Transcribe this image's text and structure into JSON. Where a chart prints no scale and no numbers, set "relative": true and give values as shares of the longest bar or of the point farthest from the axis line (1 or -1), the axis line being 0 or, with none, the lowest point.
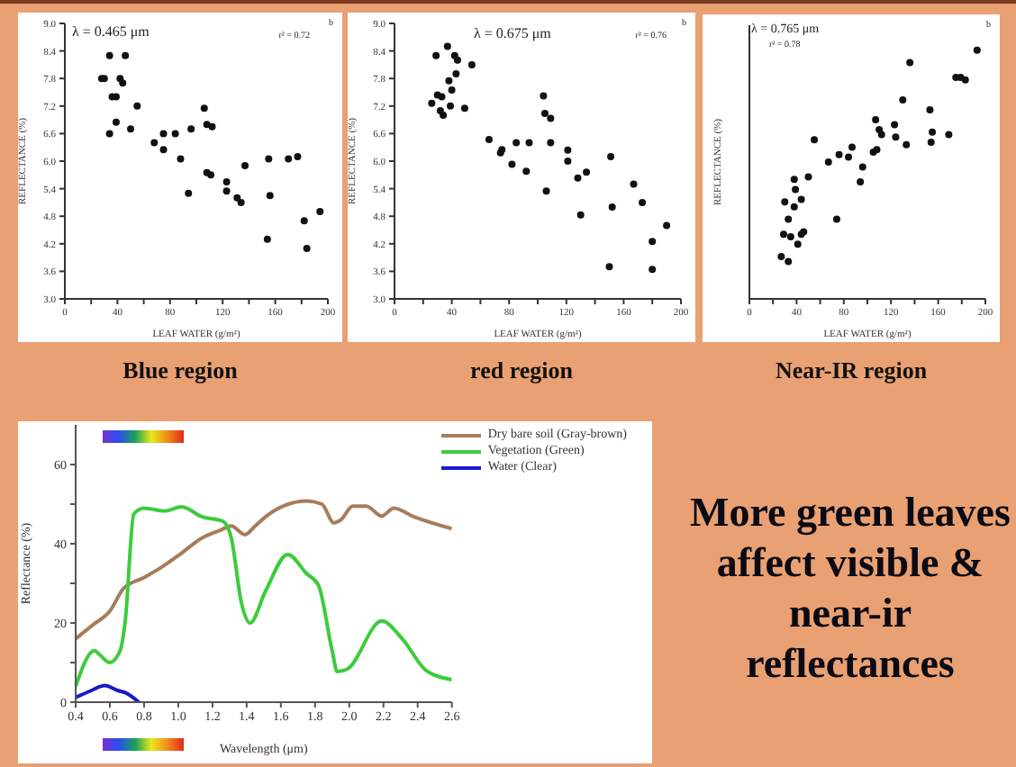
{
  "chart_data": [
    {
      "type": "scatter",
      "title": "Blue region",
      "xlabel": "LEAF WATER (g/m²)",
      "ylabel": "REFLECTANCE (%)",
      "annotations": [
        "λ = 0.465 μm",
        "r² = 0.72",
        "b"
      ],
      "color": "#111111",
      "marker": "circle",
      "x": [
        34,
        46,
        28,
        30,
        42,
        44,
        36,
        39,
        55,
        39,
        34,
        50,
        68,
        75,
        75,
        84,
        88,
        96,
        94,
        106,
        108,
        112,
        108,
        111,
        123,
        123,
        131,
        134,
        137,
        154,
        155,
        156,
        170,
        177,
        182,
        184,
        194
      ],
      "values": [
        8.3,
        8.3,
        7.8,
        7.8,
        7.8,
        7.7,
        7.4,
        7.4,
        7.2,
        6.85,
        6.6,
        6.7,
        6.4,
        6.6,
        6.25,
        6.6,
        6.05,
        6.7,
        5.3,
        7.15,
        6.8,
        6.75,
        5.75,
        5.7,
        5.55,
        5.35,
        5.2,
        5.1,
        5.9,
        4.3,
        6.05,
        5.25,
        6.05,
        6.1,
        4.7,
        4.1,
        4.9
      ],
      "xlim": [
        0,
        200
      ],
      "xticks": [
        0,
        {
          "value": 20,
          "label": null
        },
        40,
        {
          "value": 60,
          "label": null
        },
        80,
        {
          "value": 100,
          "label": null
        },
        120,
        {
          "value": 140,
          "label": null
        },
        160,
        {
          "value": 180,
          "label": null
        },
        200
      ],
      "ylim": [
        3,
        9
      ],
      "yticks": [
        {
          "value": 3,
          "label": "3.0"
        },
        3.6,
        4.2,
        4.8,
        5.4,
        {
          "value": 6,
          "label": "6.0"
        },
        6.6,
        7.2,
        7.8,
        8.4,
        {
          "value": 9,
          "label": "9.0"
        }
      ]
    },
    {
      "type": "scatter",
      "title": "red region",
      "xlabel": "LEAF WATER (g/m²)",
      "ylabel": "REFLECTANCE (%)",
      "annotations": [
        "λ = 0.675 μm",
        "r² = 0.76",
        "b"
      ],
      "color": "#111111",
      "marker": "circle",
      "x": [
        29,
        37,
        42,
        44,
        43,
        38,
        40,
        54,
        26,
        30,
        33,
        32,
        34,
        39,
        49,
        66,
        74,
        75,
        82,
        85,
        92,
        94,
        104,
        105,
        109,
        109,
        106,
        121,
        121,
        128,
        134,
        130,
        150,
        151,
        152,
        167,
        173,
        180,
        180,
        190
      ],
      "values": [
        8.3,
        8.5,
        8.3,
        8.2,
        7.9,
        7.75,
        7.55,
        8.1,
        7.26,
        7.44,
        7.4,
        7.1,
        7.0,
        7.2,
        7.15,
        6.47,
        6.18,
        6.25,
        5.93,
        6.4,
        5.78,
        6.4,
        7.42,
        7.04,
        6.93,
        6.4,
        5.35,
        6.24,
        6.0,
        5.63,
        5.76,
        4.83,
        3.7,
        6.1,
        5.0,
        5.5,
        5.1,
        4.25,
        3.64,
        4.6
      ],
      "xlim": [
        0,
        200
      ],
      "xticks": [
        0,
        {
          "value": 20,
          "label": null
        },
        40,
        {
          "value": 60,
          "label": null
        },
        80,
        {
          "value": 100,
          "label": null
        },
        120,
        {
          "value": 140,
          "label": null
        },
        160,
        {
          "value": 180,
          "label": null
        },
        200
      ],
      "ylim": [
        3,
        9
      ],
      "yticks": [
        {
          "value": 3,
          "label": "3.0"
        },
        3.6,
        4.2,
        4.8,
        5.4,
        {
          "value": 6,
          "label": "6.0"
        },
        6.6,
        7.2,
        7.8,
        8.4,
        {
          "value": 9,
          "label": "9.0"
        }
      ]
    },
    {
      "type": "scatter",
      "title": "Near-IR region",
      "xlabel": "LEAF WATER (g/m²)",
      "ylabel": "REFLECTANCE (%)",
      "annotations": [
        "λ = 0.765 μm",
        "r² = 0.78",
        "b"
      ],
      "color": "#111111",
      "marker": "circle",
      "relative": true,
      "tick_labels": "x",
      "x": [
        27,
        33,
        29,
        35,
        41,
        44,
        46,
        33,
        38,
        30,
        44,
        39,
        38,
        50,
        55,
        67,
        74,
        76,
        84,
        87,
        94,
        96,
        105,
        108,
        107,
        110,
        112,
        123,
        124,
        130,
        133,
        136,
        153,
        154,
        155,
        169,
        175,
        179,
        183,
        193
      ],
      "values": [
        0.17,
        0.15,
        0.26,
        0.25,
        0.22,
        0.26,
        0.27,
        0.32,
        0.37,
        0.39,
        0.4,
        0.44,
        0.48,
        0.49,
        0.64,
        0.55,
        0.32,
        0.58,
        0.57,
        0.61,
        0.47,
        0.53,
        0.59,
        0.6,
        0.72,
        0.68,
        0.66,
        0.7,
        0.65,
        0.8,
        0.62,
        0.95,
        0.76,
        0.63,
        0.67,
        0.66,
        0.89,
        0.89,
        0.88,
        1
      ],
      "xlim": [
        0,
        200
      ],
      "xticks": [
        0,
        {
          "value": 20,
          "label": null
        },
        40,
        {
          "value": 60,
          "label": null
        },
        80,
        {
          "value": 100,
          "label": null
        },
        120,
        {
          "value": 140,
          "label": null
        },
        160,
        {
          "value": 180,
          "label": null
        },
        200
      ]
    },
    {
      "type": "line",
      "xlabel": "Wavelength (μm)",
      "ylabel": "Reflectance (%)",
      "legend": "top right",
      "marker": "none",
      "line_style": "solid",
      "xlim": [
        0.4,
        2.6
      ],
      "xticks": [
        0.4,
        0.6,
        0.8,
        {
          "value": 1,
          "label": "1.0"
        },
        1.2,
        1.4,
        1.6,
        1.8,
        {
          "value": 2,
          "label": "2.0"
        },
        2.2,
        2.4,
        2.6
      ],
      "ylim": [
        0,
        70
      ],
      "yticks": [
        0,
        {
          "value": 10,
          "label": null
        },
        20,
        {
          "value": 30,
          "label": null
        },
        40,
        {
          "value": 50,
          "label": null
        },
        60
      ],
      "series": [
        {
          "name": "Dry bare soil (Gray-brown)",
          "color": "#a87c5a",
          "x": [
            0.4,
            0.5,
            0.6,
            0.68,
            0.8,
            0.9,
            1.0,
            1.14,
            1.25,
            1.31,
            1.39,
            1.45,
            1.51,
            1.63,
            1.75,
            1.84,
            1.91,
            1.95,
            2.02,
            2.1,
            2.19,
            2.26,
            2.38,
            2.6
          ],
          "values": [
            16,
            19.5,
            23,
            28.7,
            31.5,
            34,
            37,
            41.5,
            43.5,
            44.5,
            42.3,
            44.5,
            46.8,
            49.8,
            50.8,
            50,
            45.3,
            46,
            49.5,
            49.5,
            47,
            49,
            46.8,
            43.8
          ]
        },
        {
          "name": "Vegetation (Green)",
          "color": "#3ccc3c",
          "x": [
            0.4,
            0.51,
            0.54,
            0.6,
            0.66,
            0.69,
            0.74,
            0.8,
            0.92,
            1.02,
            1.14,
            1.26,
            1.31,
            1.37,
            1.42,
            1.51,
            1.64,
            1.75,
            1.82,
            1.9,
            1.93,
            1.99,
            2.19,
            2.31,
            2.45,
            2.6
          ],
          "values": [
            4,
            13,
            12,
            10,
            13,
            20.5,
            47.5,
            49,
            48.3,
            49.3,
            46.8,
            45.7,
            41.5,
            25,
            20,
            28,
            37.3,
            32.5,
            29.5,
            13,
            7.7,
            8.4,
            20.5,
            16,
            8,
            5.7
          ]
        },
        {
          "name": "Water (Clear)",
          "color": "#1a1acc",
          "x": [
            0.4,
            0.49,
            0.57,
            0.65,
            0.69,
            0.77
          ],
          "values": [
            1.2,
            2.9,
            4.2,
            2.9,
            2.4,
            0
          ]
        }
      ]
    },
    {
      "type": "other",
      "title": "More green leaves affect visible & near-ir reflectances"
    }
  ]
}
